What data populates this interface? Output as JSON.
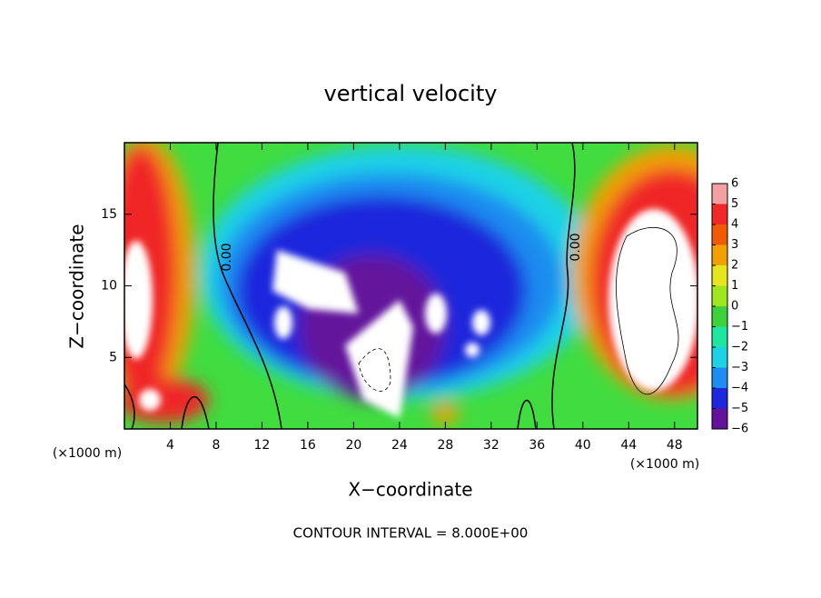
{
  "chart_data": {
    "type": "contour",
    "title": "vertical velocity",
    "xlabel": "X−coordinate",
    "ylabel": "Z−coordinate",
    "x_unit_label": "(×1000 m)",
    "y_unit_label": "(×1000 m)",
    "xlim": [
      0,
      50
    ],
    "xticks": [
      4,
      8,
      12,
      16,
      20,
      24,
      28,
      32,
      36,
      40,
      44,
      48
    ],
    "ylim": [
      0,
      20
    ],
    "yticks": [
      5,
      10,
      15
    ],
    "contour_labels": [
      "0.00",
      "0.00"
    ],
    "note": "CONTOUR INTERVAL = 8.000E+00",
    "colorbar": {
      "ticks": [
        6,
        5,
        4,
        3,
        2,
        1,
        0,
        {
          "value": -1,
          "label": "−1"
        },
        {
          "value": -2,
          "label": "−2"
        },
        {
          "value": -3,
          "label": "−3"
        },
        {
          "value": -4,
          "label": "−4"
        },
        {
          "value": -5,
          "label": "−5"
        },
        {
          "value": -6,
          "label": "−6"
        }
      ],
      "colors": [
        "#f4a0a0",
        "#f02828",
        "#f05a00",
        "#f0a000",
        "#e6e61e",
        "#a0e61e",
        "#3cd23c",
        "#1ee6a0",
        "#1ed2e6",
        "#1e8cf0",
        "#1e28dc",
        "#64129b"
      ]
    }
  }
}
